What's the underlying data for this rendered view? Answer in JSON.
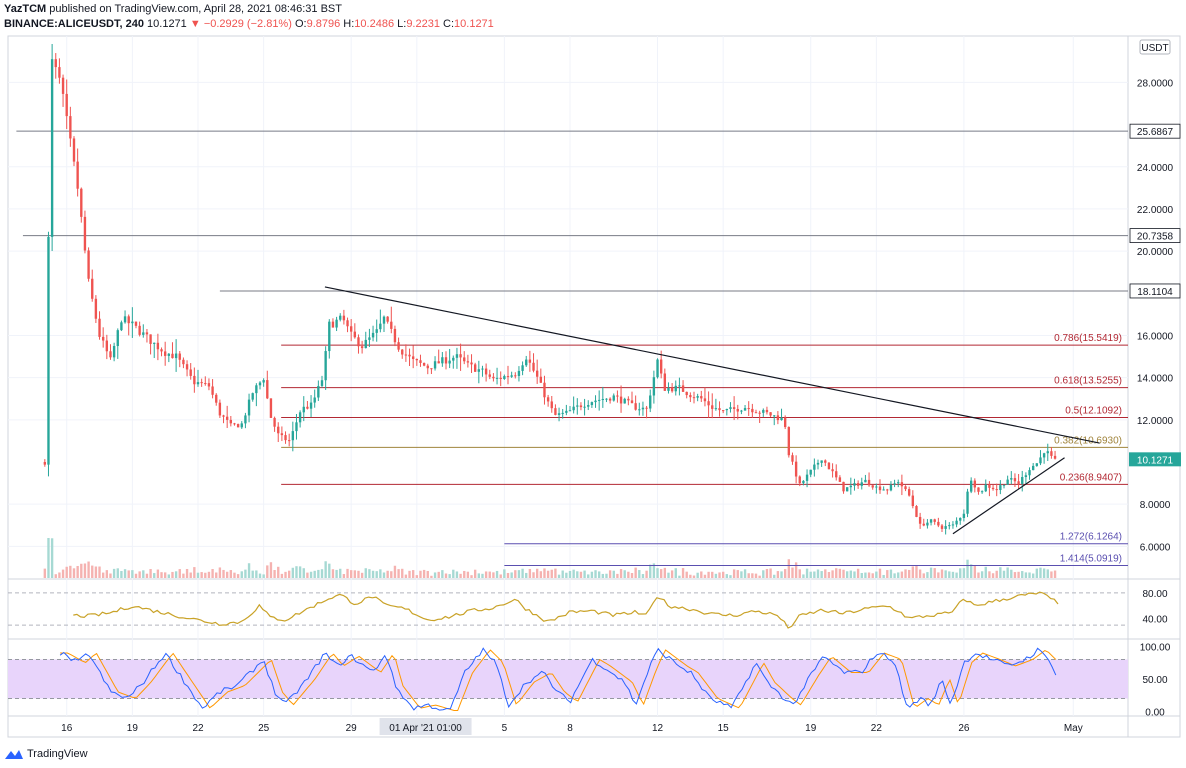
{
  "header": {
    "author": "YazTCM",
    "published_text": "published on TradingView.com, April 28, 2021 08:46:31 BST",
    "symbol": "BINANCE:ALICEUSDT, 240",
    "last": "10.1271",
    "change": "−0.2929 (−2.81%)",
    "open_label": "O:",
    "open": "9.8796",
    "high_label": "H:",
    "high": "10.2486",
    "low_label": "L:",
    "low": "9.2231",
    "close_label": "C:",
    "close": "10.1271"
  },
  "footer": {
    "brand": "TradingView"
  },
  "chart_data": {
    "type": "candlestick",
    "currency_label": "USDT",
    "price_axis": {
      "min": 4.5,
      "max": 30.2,
      "ticks": [
        "28.0000",
        "24.0000",
        "22.0000",
        "20.0000",
        "16.0000",
        "14.0000",
        "12.0000",
        "8.0000",
        "6.0000"
      ],
      "tick_values": [
        28,
        24,
        22,
        20,
        16,
        14,
        12,
        8,
        6
      ]
    },
    "time_axis": {
      "labels": [
        "16",
        "19",
        "22",
        "25",
        "29",
        "01 Apr",
        "5",
        "8",
        "12",
        "15",
        "19",
        "22",
        "26",
        "May"
      ],
      "label_days": [
        0,
        3,
        6,
        9,
        13,
        16,
        20,
        23,
        27,
        30,
        34,
        37,
        41,
        46
      ],
      "crosshair_label": "01 Apr '21  01:00",
      "day_min": -2.5,
      "day_max": 48.5
    },
    "horizontal_levels": [
      {
        "label": "25.6867",
        "value": 25.6867,
        "start_day": -2.3,
        "color": "#787b86"
      },
      {
        "label": "20.7358",
        "value": 20.7358,
        "start_day": -2.0,
        "color": "#787b86"
      },
      {
        "label": "18.1104",
        "value": 18.1104,
        "start_day": 7.0,
        "color": "#787b86"
      }
    ],
    "fib_levels": [
      {
        "label": "0.786(15.5419)",
        "value": 15.5419,
        "start_day": 9.8,
        "color": "#b22833"
      },
      {
        "label": "0.618(13.5255)",
        "value": 13.5255,
        "start_day": 9.8,
        "color": "#b22833"
      },
      {
        "label": "0.5(12.1092)",
        "value": 12.1092,
        "start_day": 9.8,
        "color": "#b22833"
      },
      {
        "label": "0.382(10.6930)",
        "value": 10.693,
        "start_day": 9.8,
        "color": "#a0843c"
      },
      {
        "label": "0.236(8.9407)",
        "value": 8.9407,
        "start_day": 9.8,
        "color": "#b22833"
      },
      {
        "label": "1.272(6.1264)",
        "value": 6.1264,
        "start_day": 20.0,
        "color": "#5a4fb0"
      },
      {
        "label": "1.414(5.0919)",
        "value": 5.0919,
        "start_day": 20.0,
        "color": "#5a4fb0"
      }
    ],
    "trendlines": [
      {
        "from": [
          11.8,
          18.3
        ],
        "to": [
          47.2,
          10.9
        ],
        "color": "#131722"
      },
      {
        "from": [
          40.5,
          6.6
        ],
        "to": [
          45.6,
          10.2
        ],
        "color": "#131722"
      }
    ],
    "last_price": {
      "label": "10.1271",
      "value": 10.1271,
      "color": "#26a69a"
    },
    "candle_anchors": [
      [
        -1.0,
        10
      ],
      [
        -0.7,
        29
      ],
      [
        -0.3,
        28
      ],
      [
        0.5,
        23
      ],
      [
        1.0,
        18.5
      ],
      [
        1.5,
        16
      ],
      [
        2.0,
        14.8
      ],
      [
        2.5,
        16.8
      ],
      [
        3.0,
        16.5
      ],
      [
        4.0,
        15.6
      ],
      [
        4.5,
        15.2
      ],
      [
        5.0,
        15.0
      ],
      [
        5.8,
        13.8
      ],
      [
        6.5,
        13.6
      ],
      [
        7.0,
        12.3
      ],
      [
        7.5,
        11.7
      ],
      [
        8.0,
        11.8
      ],
      [
        8.5,
        13.3
      ],
      [
        9.0,
        14.0
      ],
      [
        9.3,
        12.2
      ],
      [
        9.7,
        11.2
      ],
      [
        10.2,
        11.0
      ],
      [
        10.7,
        12.5
      ],
      [
        11.2,
        12.7
      ],
      [
        11.7,
        14.0
      ],
      [
        12.0,
        16.5
      ],
      [
        12.6,
        16.8
      ],
      [
        13.0,
        16.0
      ],
      [
        13.5,
        15.5
      ],
      [
        14.2,
        16.2
      ],
      [
        14.5,
        16.8
      ],
      [
        15.2,
        15.4
      ],
      [
        15.8,
        14.8
      ],
      [
        16.5,
        14.5
      ],
      [
        17.2,
        14.8
      ],
      [
        17.8,
        15.0
      ],
      [
        18.3,
        14.6
      ],
      [
        19.0,
        14.3
      ],
      [
        19.5,
        13.9
      ],
      [
        20.5,
        14.2
      ],
      [
        21.0,
        15.0
      ],
      [
        21.5,
        14.0
      ],
      [
        22.0,
        12.8
      ],
      [
        22.3,
        12.2
      ],
      [
        22.8,
        12.3
      ],
      [
        23.5,
        12.7
      ],
      [
        24.0,
        12.9
      ],
      [
        25.0,
        13.1
      ],
      [
        26.0,
        12.6
      ],
      [
        26.5,
        12.5
      ],
      [
        27.0,
        14.8
      ],
      [
        27.3,
        13.5
      ],
      [
        28.0,
        13.5
      ],
      [
        28.5,
        13.2
      ],
      [
        29.0,
        13.0
      ],
      [
        29.5,
        12.6
      ],
      [
        30.0,
        12.4
      ],
      [
        31.0,
        12.6
      ],
      [
        32.0,
        12.3
      ],
      [
        32.8,
        12.0
      ],
      [
        33.0,
        10.4
      ],
      [
        33.5,
        8.9
      ],
      [
        34.5,
        10.2
      ],
      [
        35.0,
        9.5
      ],
      [
        35.5,
        8.7
      ],
      [
        36.0,
        8.9
      ],
      [
        36.5,
        9.1
      ],
      [
        37.0,
        8.8
      ],
      [
        37.5,
        8.7
      ],
      [
        38.0,
        9.1
      ],
      [
        38.5,
        8.4
      ],
      [
        39.0,
        7.0
      ],
      [
        39.5,
        7.2
      ],
      [
        40.0,
        6.9
      ],
      [
        40.5,
        7.0
      ],
      [
        41.0,
        7.6
      ],
      [
        41.3,
        9.3
      ],
      [
        41.7,
        8.5
      ],
      [
        42.0,
        8.9
      ],
      [
        42.5,
        8.7
      ],
      [
        43.0,
        9.2
      ],
      [
        43.5,
        9.0
      ],
      [
        44.0,
        9.7
      ],
      [
        44.4,
        10.0
      ],
      [
        44.7,
        10.6
      ],
      [
        45.0,
        10.2
      ],
      [
        45.2,
        10.0
      ]
    ],
    "indicator_1": {
      "ticks": [
        "80.00",
        "40.00"
      ],
      "tick_values": [
        80,
        40
      ],
      "min": 10,
      "max": 100,
      "dashed_levels": [
        80,
        30
      ],
      "color": "#c9a227",
      "anchors": [
        [
          0.3,
          45
        ],
        [
          1.0,
          44
        ],
        [
          2.0,
          49
        ],
        [
          3.0,
          60
        ],
        [
          4.0,
          52
        ],
        [
          5.0,
          45
        ],
        [
          6.0,
          38
        ],
        [
          7.0,
          32
        ],
        [
          8.0,
          35
        ],
        [
          8.8,
          60
        ],
        [
          9.3,
          42
        ],
        [
          10.0,
          38
        ],
        [
          11.0,
          55
        ],
        [
          12.0,
          72
        ],
        [
          12.5,
          77
        ],
        [
          13.2,
          63
        ],
        [
          14.0,
          75
        ],
        [
          14.5,
          61
        ],
        [
          15.5,
          55
        ],
        [
          16.5,
          38
        ],
        [
          17.5,
          43
        ],
        [
          18.5,
          52
        ],
        [
          19.5,
          57
        ],
        [
          20.5,
          70
        ],
        [
          21.0,
          55
        ],
        [
          22.0,
          35
        ],
        [
          23.0,
          50
        ],
        [
          24.0,
          52
        ],
        [
          25.0,
          45
        ],
        [
          26.0,
          50
        ],
        [
          26.5,
          44
        ],
        [
          27.0,
          77
        ],
        [
          27.5,
          60
        ],
        [
          28.5,
          55
        ],
        [
          29.5,
          47
        ],
        [
          30.5,
          45
        ],
        [
          31.5,
          52
        ],
        [
          32.5,
          45
        ],
        [
          33.0,
          25
        ],
        [
          33.5,
          44
        ],
        [
          34.5,
          53
        ],
        [
          35.5,
          48
        ],
        [
          36.5,
          55
        ],
        [
          37.5,
          60
        ],
        [
          38.0,
          52
        ],
        [
          38.5,
          40
        ],
        [
          39.0,
          43
        ],
        [
          40.0,
          47
        ],
        [
          40.5,
          50
        ],
        [
          41.0,
          72
        ],
        [
          41.5,
          60
        ],
        [
          42.5,
          68
        ],
        [
          43.5,
          75
        ],
        [
          44.5,
          80
        ],
        [
          45.0,
          70
        ],
        [
          45.3,
          65
        ]
      ]
    },
    "indicator_2": {
      "ticks": [
        "100.00",
        "50.00",
        "0.00"
      ],
      "tick_values": [
        100,
        50,
        0
      ],
      "min": -7,
      "max": 110,
      "band": [
        20,
        80
      ],
      "band_color": "#e8d4fb",
      "k_color": "#2962ff",
      "d_color": "#ff9800",
      "anchors": [
        [
          -0.3,
          90
        ],
        [
          0.5,
          75
        ],
        [
          1.0,
          90
        ],
        [
          1.5,
          60
        ],
        [
          2.0,
          30
        ],
        [
          2.8,
          20
        ],
        [
          3.5,
          45
        ],
        [
          4.5,
          90
        ],
        [
          5.5,
          40
        ],
        [
          6.2,
          5
        ],
        [
          7.0,
          30
        ],
        [
          7.8,
          40
        ],
        [
          8.4,
          60
        ],
        [
          9.0,
          80
        ],
        [
          9.5,
          30
        ],
        [
          10.0,
          10
        ],
        [
          11.0,
          50
        ],
        [
          11.8,
          90
        ],
        [
          12.3,
          70
        ],
        [
          13.0,
          85
        ],
        [
          14.0,
          60
        ],
        [
          14.6,
          90
        ],
        [
          15.0,
          40
        ],
        [
          15.8,
          5
        ],
        [
          16.5,
          10
        ],
        [
          17.0,
          5
        ],
        [
          17.5,
          0
        ],
        [
          18.2,
          60
        ],
        [
          19.0,
          95
        ],
        [
          19.6,
          75
        ],
        [
          20.2,
          10
        ],
        [
          21.0,
          45
        ],
        [
          21.8,
          60
        ],
        [
          22.4,
          30
        ],
        [
          23.0,
          15
        ],
        [
          24.0,
          80
        ],
        [
          24.5,
          70
        ],
        [
          25.5,
          45
        ],
        [
          26.0,
          10
        ],
        [
          26.6,
          65
        ],
        [
          27.0,
          95
        ],
        [
          28.0,
          70
        ],
        [
          28.5,
          60
        ],
        [
          29.4,
          20
        ],
        [
          30.4,
          5
        ],
        [
          31.5,
          75
        ],
        [
          32.0,
          45
        ],
        [
          32.8,
          20
        ],
        [
          33.2,
          10
        ],
        [
          34.0,
          55
        ],
        [
          34.6,
          85
        ],
        [
          35.5,
          60
        ],
        [
          36.3,
          60
        ],
        [
          37.0,
          90
        ],
        [
          37.8,
          80
        ],
        [
          38.4,
          5
        ],
        [
          39.0,
          20
        ],
        [
          39.5,
          10
        ],
        [
          40.0,
          50
        ],
        [
          40.4,
          10
        ],
        [
          41.0,
          75
        ],
        [
          41.5,
          90
        ],
        [
          42.3,
          80
        ],
        [
          43.0,
          70
        ],
        [
          43.8,
          80
        ],
        [
          44.4,
          95
        ],
        [
          45.0,
          75
        ],
        [
          45.3,
          50
        ]
      ]
    }
  }
}
